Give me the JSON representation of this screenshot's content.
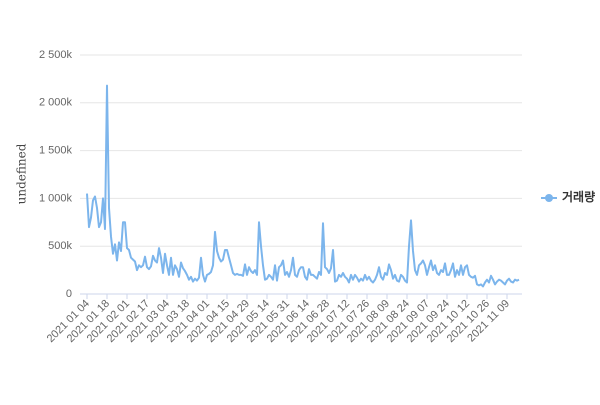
{
  "chart_data": {
    "type": "line",
    "y_label": "undefined",
    "categories": [
      "2021 01 04",
      null,
      null,
      null,
      null,
      null,
      null,
      null,
      null,
      null,
      "2021 01 18",
      null,
      null,
      null,
      null,
      null,
      null,
      null,
      null,
      null,
      "2021 02 01",
      null,
      null,
      null,
      null,
      null,
      null,
      null,
      null,
      null,
      "2021 02 17",
      null,
      null,
      null,
      null,
      null,
      null,
      null,
      null,
      null,
      "2021 03 04",
      null,
      null,
      null,
      null,
      null,
      null,
      null,
      null,
      null,
      "2021 03 18",
      null,
      null,
      null,
      null,
      null,
      null,
      null,
      null,
      null,
      "2021 04 01",
      null,
      null,
      null,
      null,
      null,
      null,
      null,
      null,
      null,
      "2021 04 15",
      null,
      null,
      null,
      null,
      null,
      null,
      null,
      null,
      null,
      "2021 04 29",
      null,
      null,
      null,
      null,
      null,
      null,
      null,
      null,
      null,
      "2021 05 14",
      null,
      null,
      null,
      null,
      null,
      null,
      null,
      null,
      null,
      "2021 05 31",
      null,
      null,
      null,
      null,
      null,
      null,
      null,
      null,
      null,
      "2021 06 14",
      null,
      null,
      null,
      null,
      null,
      null,
      null,
      null,
      null,
      "2021 06 28",
      null,
      null,
      null,
      null,
      null,
      null,
      null,
      null,
      null,
      "2021 07 12",
      null,
      null,
      null,
      null,
      null,
      null,
      null,
      null,
      null,
      "2021 07 26",
      null,
      null,
      null,
      null,
      null,
      null,
      null,
      null,
      null,
      "2021 08 09",
      null,
      null,
      null,
      null,
      null,
      null,
      null,
      null,
      null,
      "2021 08 24",
      null,
      null,
      null,
      null,
      null,
      null,
      null,
      null,
      null,
      "2021 09 07",
      null,
      null,
      null,
      null,
      null,
      null,
      null,
      null,
      null,
      "2021 09 24",
      null,
      null,
      null,
      null,
      null,
      null,
      null,
      null,
      null,
      "2021 10 12",
      null,
      null,
      null,
      null,
      null,
      null,
      null,
      null,
      null,
      "2021 10 26",
      null,
      null,
      null,
      null,
      null,
      null,
      null,
      null,
      null,
      "2021 11 09",
      null,
      null,
      null,
      null,
      null,
      null
    ],
    "series": [
      {
        "name": "거래량",
        "color": "#7cb5ec",
        "values": [
          1050000,
          700000,
          800000,
          980000,
          1020000,
          900000,
          700000,
          750000,
          1000000,
          680000,
          2180000,
          900000,
          600000,
          420000,
          520000,
          350000,
          540000,
          450000,
          750000,
          750000,
          480000,
          460000,
          380000,
          360000,
          340000,
          250000,
          300000,
          280000,
          300000,
          390000,
          280000,
          260000,
          290000,
          400000,
          350000,
          330000,
          480000,
          380000,
          220000,
          420000,
          300000,
          200000,
          380000,
          200000,
          300000,
          260000,
          180000,
          330000,
          270000,
          240000,
          200000,
          150000,
          180000,
          130000,
          160000,
          140000,
          170000,
          380000,
          200000,
          130000,
          200000,
          210000,
          230000,
          300000,
          650000,
          450000,
          380000,
          340000,
          360000,
          460000,
          460000,
          380000,
          300000,
          220000,
          200000,
          210000,
          200000,
          200000,
          190000,
          310000,
          200000,
          280000,
          240000,
          220000,
          250000,
          200000,
          750000,
          500000,
          300000,
          150000,
          160000,
          200000,
          180000,
          150000,
          300000,
          140000,
          280000,
          300000,
          350000,
          200000,
          230000,
          180000,
          250000,
          380000,
          200000,
          180000,
          250000,
          280000,
          280000,
          180000,
          150000,
          260000,
          200000,
          200000,
          180000,
          160000,
          230000,
          200000,
          740000,
          280000,
          260000,
          220000,
          270000,
          460000,
          130000,
          140000,
          200000,
          180000,
          220000,
          180000,
          160000,
          120000,
          200000,
          150000,
          200000,
          170000,
          130000,
          160000,
          140000,
          200000,
          150000,
          180000,
          140000,
          120000,
          150000,
          200000,
          280000,
          180000,
          150000,
          220000,
          200000,
          310000,
          250000,
          160000,
          200000,
          140000,
          130000,
          200000,
          180000,
          140000,
          120000,
          500000,
          770000,
          450000,
          250000,
          200000,
          300000,
          320000,
          350000,
          300000,
          200000,
          280000,
          350000,
          250000,
          300000,
          220000,
          200000,
          250000,
          230000,
          320000,
          200000,
          200000,
          250000,
          320000,
          180000,
          250000,
          200000,
          300000,
          200000,
          280000,
          300000,
          200000,
          180000,
          170000,
          190000,
          100000,
          90000,
          100000,
          80000,
          120000,
          150000,
          120000,
          190000,
          150000,
          100000,
          130000,
          150000,
          140000,
          120000,
          100000,
          140000,
          160000,
          130000,
          120000,
          150000,
          140000,
          150000
        ]
      }
    ],
    "ylim": [
      0,
      2500000
    ],
    "yticks": [
      {
        "value": 0,
        "label": "0"
      },
      {
        "value": 500000,
        "label": "500k"
      },
      {
        "value": 1000000,
        "label": "1 000k"
      },
      {
        "value": 1500000,
        "label": "1 500k"
      },
      {
        "value": 2000000,
        "label": "2 000k"
      },
      {
        "value": 2500000,
        "label": "2 500k"
      }
    ],
    "grid": true
  }
}
